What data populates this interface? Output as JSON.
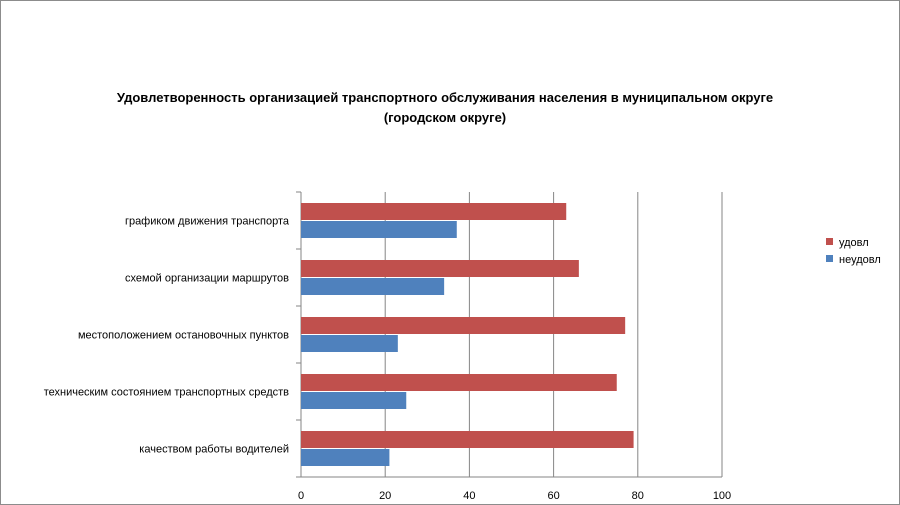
{
  "chart_data": {
    "type": "bar",
    "orientation": "horizontal",
    "title_line1": "Удовлетворенность организацией транспортного обслуживания населения в муниципальном округе",
    "title_line2": "(городском округе)",
    "categories": [
      "качеством работы водителей",
      "техническим состоянием транспортных средств",
      "местоположением остановочных пунктов",
      "схемой организации маршрутов",
      "графиком движения транспорта"
    ],
    "series": [
      {
        "name": "неудовл",
        "color": "#4f81bd",
        "values": [
          21,
          25,
          23,
          34,
          37
        ]
      },
      {
        "name": "удовл",
        "color": "#c0504d",
        "values": [
          79,
          75,
          77,
          66,
          63
        ]
      }
    ],
    "xlim": [
      0,
      100
    ],
    "xticks": [
      0,
      20,
      40,
      60,
      80,
      100
    ],
    "grid": "vertical",
    "legend_position": "right",
    "legend_order": [
      "удовл",
      "неудовл"
    ]
  }
}
